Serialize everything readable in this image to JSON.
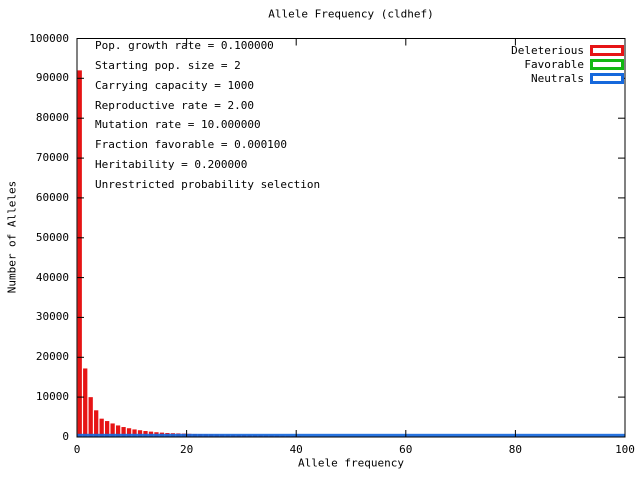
{
  "title": "Allele Frequency (cldhef)",
  "colors": {
    "deleterious": "#e61415",
    "favorable": "#12b812",
    "neutrals": "#1668dc",
    "axis": "#000000",
    "background": "#ffffff",
    "text": "#000000"
  },
  "legend": {
    "entries": [
      {
        "label": "Deleterious",
        "color": "#e61415"
      },
      {
        "label": "Favorable",
        "color": "#12b812"
      },
      {
        "label": "Neutrals",
        "color": "#1668dc"
      }
    ]
  },
  "annotations": [
    "Pop. growth rate = 0.100000",
    "Starting pop. size = 2",
    "Carrying capacity = 1000",
    "Reproductive rate = 2.00",
    "Mutation rate = 10.000000",
    "Fraction favorable = 0.000100",
    "Heritability = 0.200000",
    "Unrestricted probability selection"
  ],
  "chart_data": {
    "type": "bar",
    "title": "Allele Frequency (cldhef)",
    "xlabel": "Allele frequency",
    "ylabel": "Number of Alleles",
    "xlim": [
      0,
      100
    ],
    "ylim": [
      0,
      100000
    ],
    "xticks": [
      0,
      20,
      40,
      60,
      80,
      100
    ],
    "yticks": [
      0,
      10000,
      20000,
      30000,
      40000,
      50000,
      60000,
      70000,
      80000,
      90000,
      100000
    ],
    "bin_width": 1,
    "grid": false,
    "legend_position": "top-right-inside",
    "series": [
      {
        "name": "Deleterious",
        "color": "#e61415",
        "values": [
          92000,
          17200,
          10000,
          6700,
          4600,
          4000,
          3400,
          2900,
          2500,
          2200,
          1900,
          1700,
          1500,
          1350,
          1200,
          1100,
          1000,
          950,
          900,
          850,
          800,
          760,
          720,
          680,
          650,
          620,
          600,
          580,
          550,
          520,
          500,
          480,
          460,
          440,
          420,
          400,
          370,
          340,
          300,
          250,
          200,
          0,
          0,
          0,
          0,
          0,
          0,
          0,
          0,
          0,
          0,
          0,
          0,
          0,
          0,
          0,
          0,
          0,
          0,
          0,
          0,
          0,
          0,
          0,
          0,
          0,
          0,
          0,
          0,
          0,
          0,
          0,
          0,
          0,
          0,
          0,
          0,
          0,
          0,
          0,
          0,
          0,
          0,
          0,
          0,
          0,
          0,
          0,
          0,
          0,
          0,
          0,
          0,
          0,
          0,
          0,
          0,
          0,
          0,
          0
        ]
      },
      {
        "name": "Favorable",
        "color": "#12b812",
        "values": [
          0,
          0,
          0,
          0,
          0,
          0,
          0,
          0,
          0,
          0,
          0,
          0,
          0,
          0,
          0,
          0,
          0,
          0,
          0,
          0,
          0,
          0,
          0,
          0,
          0,
          0,
          0,
          0,
          0,
          0,
          0,
          0,
          0,
          0,
          0,
          0,
          0,
          0,
          0,
          0,
          0,
          0,
          0,
          0,
          0,
          0,
          0,
          0,
          0,
          0,
          0,
          0,
          0,
          0,
          0,
          0,
          0,
          0,
          0,
          0,
          0,
          0,
          0,
          0,
          0,
          0,
          0,
          0,
          0,
          0,
          0,
          0,
          0,
          0,
          0,
          0,
          0,
          0,
          0,
          0,
          0,
          0,
          0,
          0,
          0,
          0,
          0,
          0,
          0,
          0,
          0,
          0,
          0,
          0,
          0,
          0,
          0,
          0,
          0,
          0
        ]
      },
      {
        "name": "Neutrals",
        "color": "#1668dc",
        "values": [
          800,
          800,
          800,
          800,
          800,
          800,
          800,
          800,
          800,
          800,
          800,
          800,
          800,
          800,
          800,
          800,
          800,
          800,
          800,
          800,
          800,
          800,
          800,
          800,
          800,
          800,
          800,
          800,
          800,
          800,
          800,
          800,
          800,
          800,
          800,
          800,
          800,
          800,
          800,
          800,
          800,
          800,
          800,
          800,
          800,
          800,
          800,
          800,
          800,
          800,
          800,
          800,
          800,
          800,
          800,
          800,
          800,
          800,
          800,
          800,
          800,
          800,
          800,
          800,
          800,
          800,
          800,
          800,
          800,
          800,
          800,
          800,
          800,
          800,
          800,
          800,
          800,
          800,
          800,
          800,
          800,
          800,
          800,
          800,
          800,
          800,
          800,
          800,
          800,
          800,
          800,
          800,
          800,
          800,
          800,
          800,
          800,
          800,
          800,
          800
        ]
      }
    ]
  }
}
